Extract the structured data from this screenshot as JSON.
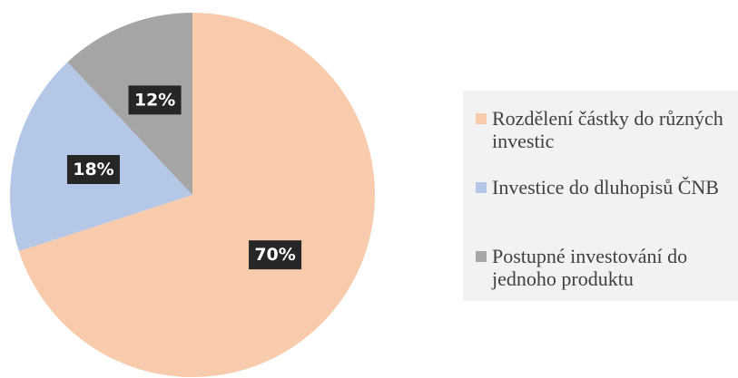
{
  "chart_data": {
    "type": "pie",
    "categories": [
      "Rozdělení částky do různých investic",
      "Investice do dluhopisů ČNB",
      "Postupné investování do jednoho produktu"
    ],
    "values": [
      70,
      18,
      12
    ],
    "value_labels": [
      "70%",
      "18%",
      "12%"
    ],
    "colors": [
      "#f8cbad",
      "#b4c7e7",
      "#a5a5a5"
    ],
    "legend": "right"
  }
}
